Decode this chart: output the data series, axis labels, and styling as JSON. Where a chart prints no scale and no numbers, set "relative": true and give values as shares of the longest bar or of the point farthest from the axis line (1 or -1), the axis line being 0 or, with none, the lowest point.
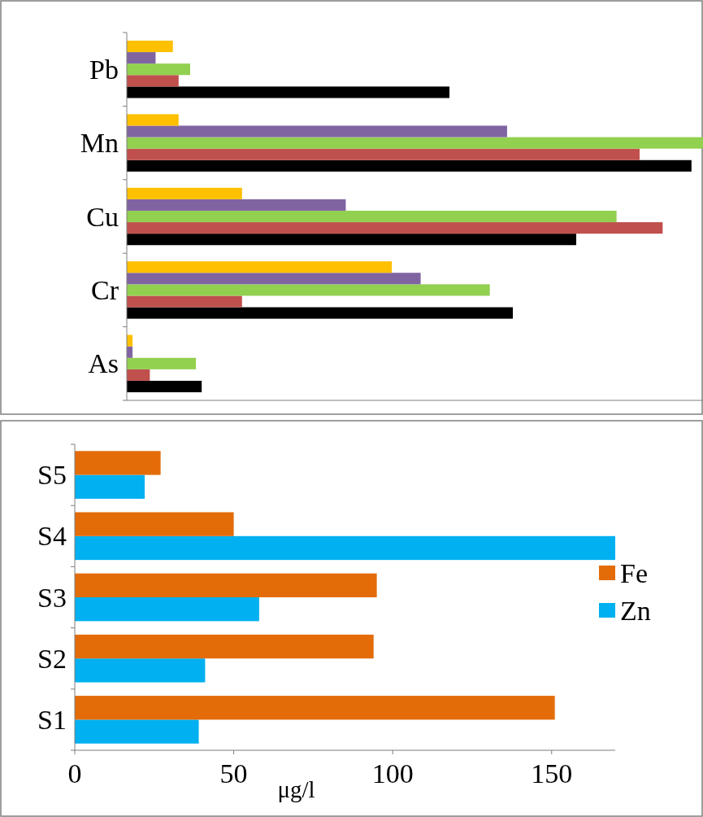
{
  "chart_data": [
    {
      "type": "bar",
      "orientation": "horizontal",
      "relative": true,
      "categories": [
        "Pb",
        "Mn",
        "Cu",
        "Cr",
        "As"
      ],
      "grid": false,
      "legend": false,
      "series": [
        {
          "color": "#000000",
          "values": [
            0.56,
            0.98,
            0.78,
            0.67,
            0.13
          ]
        },
        {
          "color": "#c0504d",
          "values": [
            0.09,
            0.89,
            0.93,
            0.2,
            0.04
          ]
        },
        {
          "color": "#92d050",
          "values": [
            0.11,
            1,
            0.85,
            0.63,
            0.12
          ]
        },
        {
          "color": "#8064a2",
          "values": [
            0.05,
            0.66,
            0.38,
            0.51,
            0.01
          ]
        },
        {
          "color": "#ffc000",
          "values": [
            0.08,
            0.09,
            0.2,
            0.46,
            0.01
          ]
        }
      ]
    },
    {
      "type": "bar",
      "orientation": "horizontal",
      "categories": [
        "S5",
        "S4",
        "S3",
        "S2",
        "S1"
      ],
      "xlabel": "μg/l",
      "xlim": [
        0,
        170
      ],
      "xticks": [
        0,
        50,
        100,
        150
      ],
      "grid": false,
      "legend": "right",
      "series": [
        {
          "name": "Zn",
          "color": "#00b0f0",
          "values": [
            22,
            170,
            58,
            41,
            39
          ]
        },
        {
          "name": "Fe",
          "color": "#e36c09",
          "values": [
            27,
            50,
            95,
            94,
            151
          ]
        }
      ]
    }
  ]
}
